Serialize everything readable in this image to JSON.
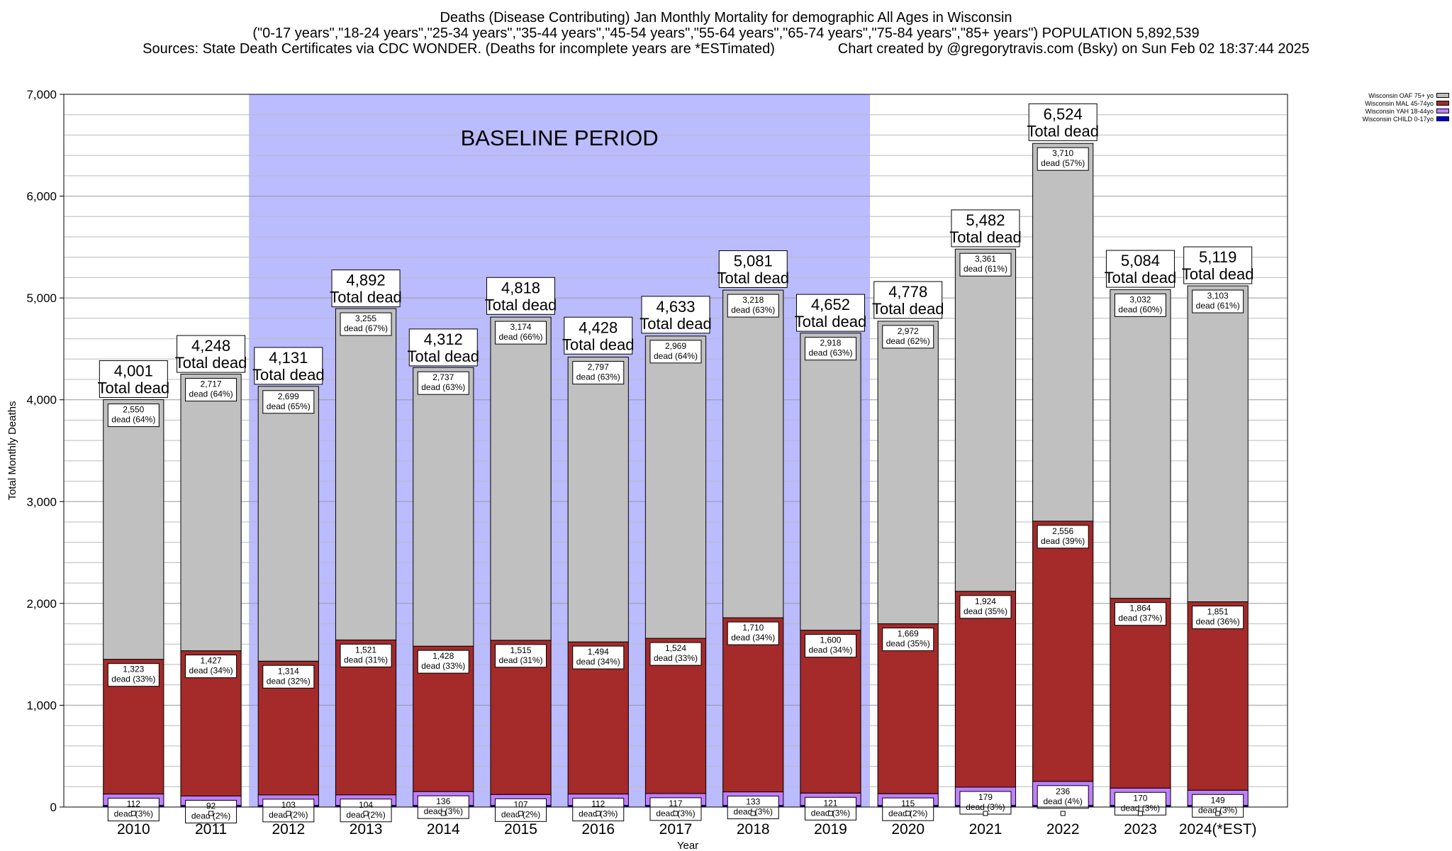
{
  "title_lines": [
    "Deaths (Disease Contributing) Jan Monthly Mortality for demographic All Ages in Wisconsin",
    "(\"0-17 years\",\"18-24 years\",\"25-34 years\",\"35-44 years\",\"45-54 years\",\"55-64 years\",\"65-74 years\",\"75-84 years\",\"85+ years\") POPULATION 5,892,539",
    "Sources: State Death Certificates via CDC WONDER. (Deaths for incomplete years are *ESTimated)                Chart created by @gregorytravis.com (Bsky) on Sun Feb 02 18:37:44 2025"
  ],
  "colors": {
    "baseline_band": "#bbbbff",
    "oaf": "#c0c0c0",
    "mal": "#a52a2a",
    "yah": "#bf80ff",
    "child": "#0000cc"
  },
  "chart_data": {
    "type": "bar",
    "stacked": true,
    "xlabel": "Year",
    "ylabel": "Total Monthly Deaths",
    "ylim": [
      0,
      7000
    ],
    "yticks": [
      0,
      1000,
      2000,
      3000,
      4000,
      5000,
      6000,
      7000
    ],
    "ytick_labels": [
      "0",
      "1,000",
      "2,000",
      "3,000",
      "4,000",
      "5,000",
      "6,000",
      "7,000"
    ],
    "grid": true,
    "legend_position": "top-right",
    "annotation": "BASELINE PERIOD",
    "baseline_period": [
      "2012",
      "2019"
    ],
    "categories": [
      "2010",
      "2011",
      "2012",
      "2013",
      "2014",
      "2015",
      "2016",
      "2017",
      "2018",
      "2019",
      "2020",
      "2021",
      "2022",
      "2023",
      "2024(*EST)"
    ],
    "total_suffix": "Total dead",
    "series": [
      {
        "key": "child",
        "name": "Wisconsin CHILD 0-17yo",
        "values": [
          16,
          16,
          16,
          16,
          16,
          16,
          16,
          16,
          16,
          16,
          16,
          16,
          16,
          16,
          16
        ]
      },
      {
        "key": "yah",
        "name": "Wisconsin YAH 18-44yo",
        "values": [
          112,
          92,
          103,
          104,
          136,
          107,
          112,
          117,
          133,
          121,
          115,
          179,
          236,
          170,
          149
        ],
        "labels": [
          "dead (3%)",
          "dead (2%)",
          "dead (2%)",
          "dead (2%)",
          "dead (3%)",
          "dead (2%)",
          "dead (3%)",
          "dead (3%)",
          "dead (3%)",
          "dead (3%)",
          "dead (2%)",
          "dead (3%)",
          "dead (4%)",
          "dead (3%)",
          "dead (3%)"
        ]
      },
      {
        "key": "mal",
        "name": "Wisconsin MAL 45-74yo",
        "values": [
          1323,
          1427,
          1314,
          1521,
          1428,
          1515,
          1494,
          1524,
          1710,
          1600,
          1669,
          1924,
          2556,
          1864,
          1851
        ],
        "labels": [
          "dead (33%)",
          "dead (34%)",
          "dead (32%)",
          "dead (31%)",
          "dead (33%)",
          "dead (31%)",
          "dead (34%)",
          "dead (33%)",
          "dead (34%)",
          "dead (34%)",
          "dead (35%)",
          "dead (35%)",
          "dead (39%)",
          "dead (37%)",
          "dead (36%)"
        ]
      },
      {
        "key": "oaf",
        "name": "Wisconsin OAF 75+ yo",
        "values": [
          2550,
          2717,
          2699,
          3255,
          2737,
          3174,
          2797,
          2969,
          3218,
          2918,
          2972,
          3361,
          3710,
          3032,
          3103
        ],
        "labels": [
          "dead (64%)",
          "dead (64%)",
          "dead (65%)",
          "dead (67%)",
          "dead (63%)",
          "dead (66%)",
          "dead (63%)",
          "dead (64%)",
          "dead (63%)",
          "dead (63%)",
          "dead (62%)",
          "dead (61%)",
          "dead (57%)",
          "dead (60%)",
          "dead (61%)"
        ]
      }
    ],
    "value_labels": {
      "yah": [
        "112",
        "92",
        "103",
        "104",
        "136",
        "107",
        "112",
        "117",
        "133",
        "121",
        "115",
        "179",
        "236",
        "170",
        "149"
      ],
      "mal": [
        "1,323",
        "1,427",
        "1,314",
        "1,521",
        "1,428",
        "1,515",
        "1,494",
        "1,524",
        "1,710",
        "1,600",
        "1,669",
        "1,924",
        "2,556",
        "1,864",
        "1,851"
      ],
      "oaf": [
        "2,550",
        "2,717",
        "2,699",
        "3,255",
        "2,737",
        "3,174",
        "2,797",
        "2,969",
        "3,218",
        "2,918",
        "2,972",
        "3,361",
        "3,710",
        "3,032",
        "3,103"
      ]
    },
    "totals": [
      4001,
      4248,
      4131,
      4892,
      4312,
      4818,
      4428,
      4633,
      5081,
      4652,
      4778,
      5482,
      6524,
      5084,
      5119
    ],
    "total_labels": [
      "4,001",
      "4,248",
      "4,131",
      "4,892",
      "4,312",
      "4,818",
      "4,428",
      "4,633",
      "5,081",
      "4,652",
      "4,778",
      "5,482",
      "6,524",
      "5,084",
      "5,119"
    ]
  }
}
